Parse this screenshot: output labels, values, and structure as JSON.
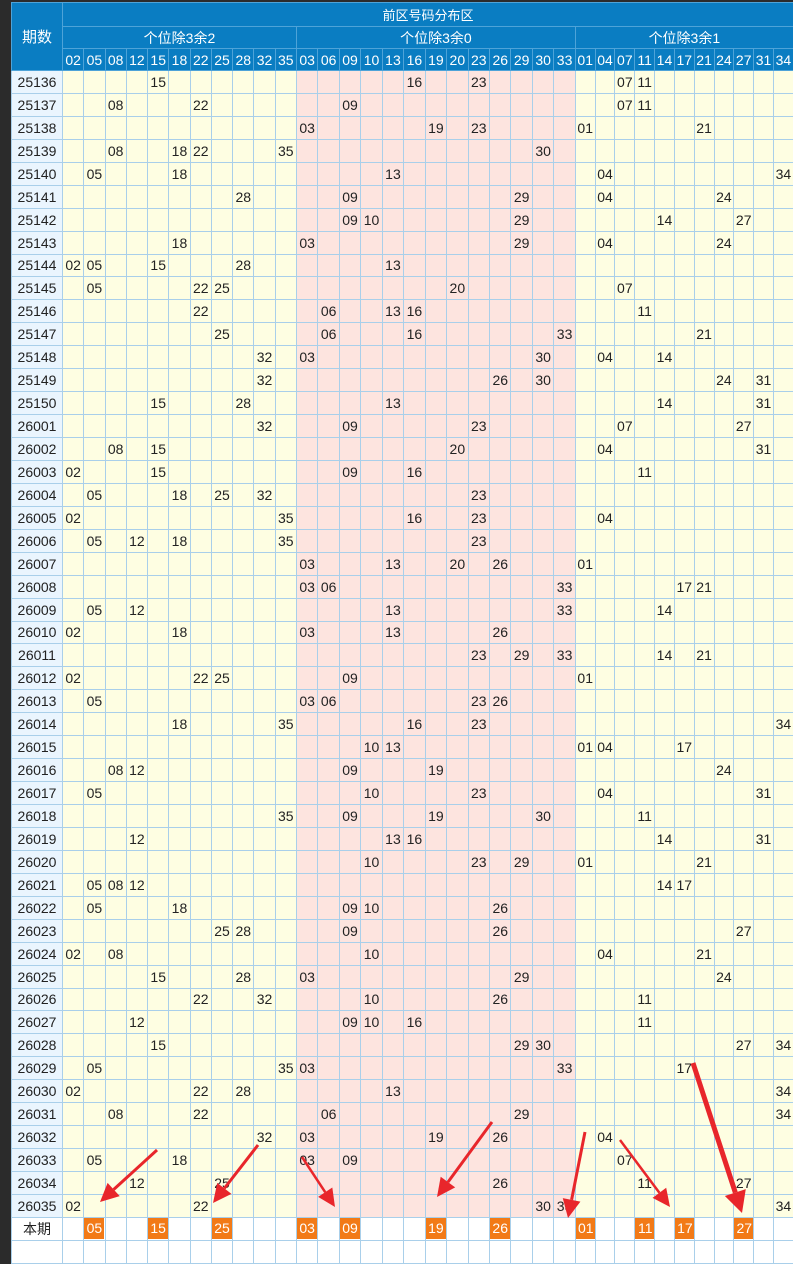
{
  "header": {
    "period_label": "期数",
    "zone_title": "前区号码分布区",
    "groups": [
      {
        "label": "个位除3余2",
        "numbers": [
          "02",
          "05",
          "08",
          "12",
          "15",
          "18",
          "22",
          "25",
          "28",
          "32",
          "35"
        ]
      },
      {
        "label": "个位除3余0",
        "numbers": [
          "03",
          "06",
          "09",
          "10",
          "13",
          "16",
          "19",
          "20",
          "23",
          "26",
          "29",
          "30",
          "33"
        ]
      },
      {
        "label": "个位除3余1",
        "numbers": [
          "01",
          "04",
          "07",
          "11",
          "14",
          "17",
          "21",
          "24",
          "27",
          "31",
          "34"
        ]
      }
    ]
  },
  "colors": {
    "header": "#0a7dc2",
    "group_yellow": "#fefee2",
    "group_pink": "#fde4df",
    "highlight": "#f27a17",
    "arrow": "#e8262b"
  },
  "rows": [
    {
      "period": "25136",
      "nums": [
        "15",
        "16",
        "23",
        "07",
        "11"
      ]
    },
    {
      "period": "25137",
      "nums": [
        "08",
        "22",
        "09",
        "07",
        "11"
      ]
    },
    {
      "period": "25138",
      "nums": [
        "03",
        "19",
        "23",
        "01",
        "21"
      ]
    },
    {
      "period": "25139",
      "nums": [
        "08",
        "18",
        "22",
        "35",
        "30"
      ]
    },
    {
      "period": "25140",
      "nums": [
        "05",
        "18",
        "13",
        "04",
        "34"
      ]
    },
    {
      "period": "25141",
      "nums": [
        "28",
        "09",
        "29",
        "04",
        "24"
      ]
    },
    {
      "period": "25142",
      "nums": [
        "09",
        "10",
        "29",
        "14",
        "27"
      ]
    },
    {
      "period": "25143",
      "nums": [
        "18",
        "03",
        "29",
        "04",
        "24"
      ]
    },
    {
      "period": "25144",
      "nums": [
        "02",
        "05",
        "15",
        "28",
        "13"
      ]
    },
    {
      "period": "25145",
      "nums": [
        "05",
        "22",
        "25",
        "20",
        "07"
      ]
    },
    {
      "period": "25146",
      "nums": [
        "22",
        "06",
        "13",
        "16",
        "11"
      ]
    },
    {
      "period": "25147",
      "nums": [
        "25",
        "06",
        "16",
        "33",
        "21"
      ]
    },
    {
      "period": "25148",
      "nums": [
        "32",
        "03",
        "30",
        "04",
        "14"
      ]
    },
    {
      "period": "25149",
      "nums": [
        "32",
        "26",
        "30",
        "24",
        "31"
      ]
    },
    {
      "period": "25150",
      "nums": [
        "15",
        "28",
        "13",
        "14",
        "31"
      ]
    },
    {
      "period": "26001",
      "nums": [
        "32",
        "09",
        "23",
        "07",
        "27"
      ]
    },
    {
      "period": "26002",
      "nums": [
        "08",
        "15",
        "20",
        "04",
        "31"
      ]
    },
    {
      "period": "26003",
      "nums": [
        "02",
        "15",
        "09",
        "16",
        "11"
      ]
    },
    {
      "period": "26004",
      "nums": [
        "05",
        "18",
        "25",
        "32",
        "23"
      ]
    },
    {
      "period": "26005",
      "nums": [
        "02",
        "35",
        "16",
        "23",
        "04"
      ]
    },
    {
      "period": "26006",
      "nums": [
        "05",
        "12",
        "18",
        "35",
        "23"
      ]
    },
    {
      "period": "26007",
      "nums": [
        "03",
        "13",
        "20",
        "26",
        "01"
      ]
    },
    {
      "period": "26008",
      "nums": [
        "03",
        "06",
        "33",
        "17",
        "21"
      ]
    },
    {
      "period": "26009",
      "nums": [
        "05",
        "12",
        "13",
        "33",
        "14"
      ]
    },
    {
      "period": "26010",
      "nums": [
        "02",
        "18",
        "03",
        "13",
        "26"
      ]
    },
    {
      "period": "26011",
      "nums": [
        "23",
        "29",
        "33",
        "14",
        "21"
      ]
    },
    {
      "period": "26012",
      "nums": [
        "02",
        "22",
        "25",
        "09",
        "01"
      ]
    },
    {
      "period": "26013",
      "nums": [
        "05",
        "03",
        "06",
        "23",
        "26"
      ]
    },
    {
      "period": "26014",
      "nums": [
        "18",
        "35",
        "16",
        "23",
        "34"
      ]
    },
    {
      "period": "26015",
      "nums": [
        "10",
        "13",
        "01",
        "04",
        "17"
      ]
    },
    {
      "period": "26016",
      "nums": [
        "08",
        "12",
        "09",
        "19",
        "24"
      ]
    },
    {
      "period": "26017",
      "nums": [
        "05",
        "10",
        "23",
        "04",
        "31"
      ]
    },
    {
      "period": "26018",
      "nums": [
        "35",
        "09",
        "19",
        "30",
        "11"
      ]
    },
    {
      "period": "26019",
      "nums": [
        "12",
        "13",
        "16",
        "14",
        "31"
      ]
    },
    {
      "period": "26020",
      "nums": [
        "10",
        "23",
        "29",
        "01",
        "21"
      ]
    },
    {
      "period": "26021",
      "nums": [
        "05",
        "08",
        "12",
        "14",
        "17"
      ]
    },
    {
      "period": "26022",
      "nums": [
        "05",
        "18",
        "09",
        "10",
        "26"
      ]
    },
    {
      "period": "26023",
      "nums": [
        "25",
        "28",
        "09",
        "26",
        "27"
      ]
    },
    {
      "period": "26024",
      "nums": [
        "02",
        "08",
        "10",
        "04",
        "21"
      ]
    },
    {
      "period": "26025",
      "nums": [
        "15",
        "28",
        "03",
        "29",
        "24"
      ]
    },
    {
      "period": "26026",
      "nums": [
        "22",
        "32",
        "10",
        "26",
        "11"
      ]
    },
    {
      "period": "26027",
      "nums": [
        "12",
        "09",
        "10",
        "16",
        "11"
      ]
    },
    {
      "period": "26028",
      "nums": [
        "15",
        "29",
        "30",
        "27",
        "34"
      ]
    },
    {
      "period": "26029",
      "nums": [
        "05",
        "35",
        "03",
        "33",
        "17"
      ]
    },
    {
      "period": "26030",
      "nums": [
        "02",
        "22",
        "28",
        "13",
        "34"
      ]
    },
    {
      "period": "26031",
      "nums": [
        "08",
        "22",
        "06",
        "29",
        "34"
      ]
    },
    {
      "period": "26032",
      "nums": [
        "32",
        "03",
        "19",
        "26",
        "04"
      ]
    },
    {
      "period": "26033",
      "nums": [
        "05",
        "18",
        "03",
        "09",
        "07"
      ]
    },
    {
      "period": "26034",
      "nums": [
        "12",
        "25",
        "26",
        "11",
        "27"
      ]
    },
    {
      "period": "26035",
      "nums": [
        "02",
        "22",
        "30",
        "33",
        "34"
      ]
    }
  ],
  "current": {
    "period": "本期",
    "nums": [
      "05",
      "15",
      "25",
      "03",
      "09",
      "19",
      "26",
      "01",
      "11",
      "17",
      "27"
    ]
  },
  "annotations": {
    "arrow_count": 7
  }
}
